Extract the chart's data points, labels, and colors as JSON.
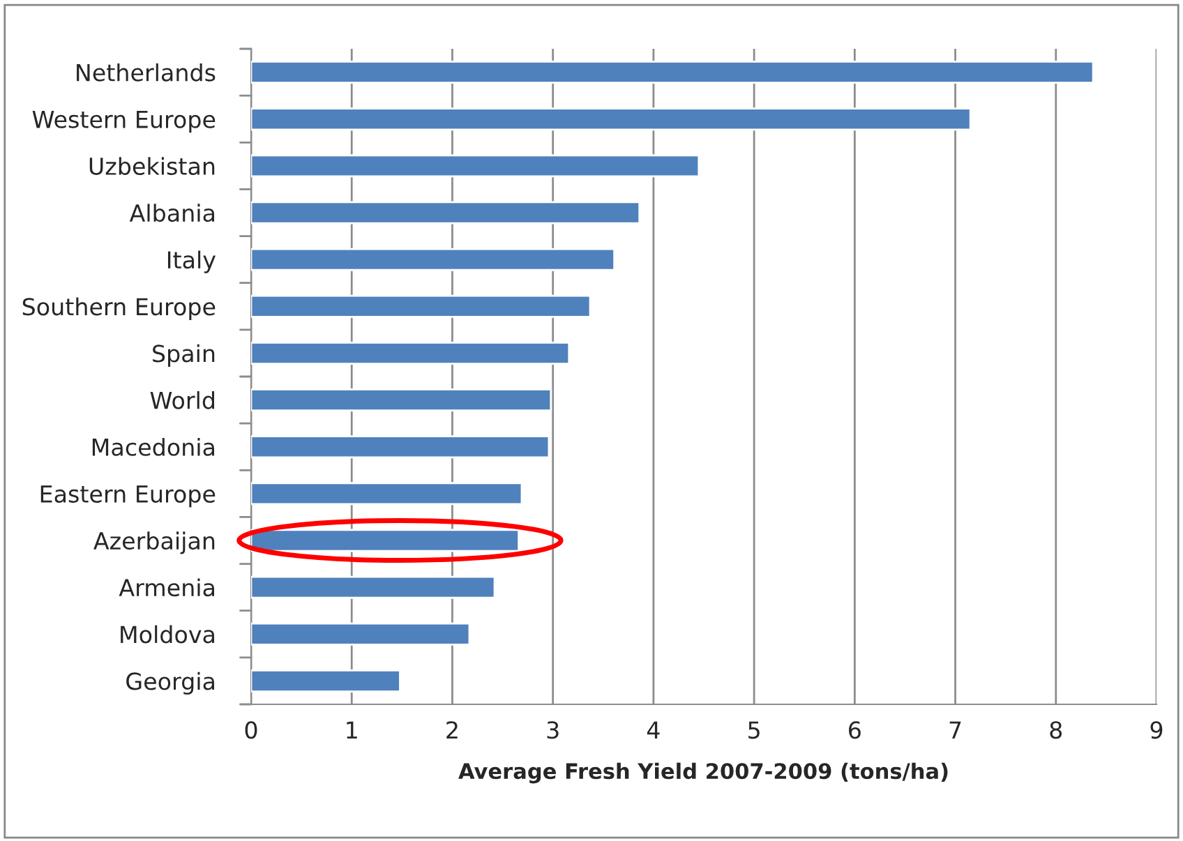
{
  "chart_data": {
    "type": "bar",
    "orientation": "horizontal",
    "categories": [
      "Netherlands",
      "Western Europe",
      "Uzbekistan",
      "Albania",
      "Italy",
      "Southern Europe",
      "Spain",
      "World",
      "Macedonia",
      "Eastern Europe",
      "Azerbaijan",
      "Armenia",
      "Moldova",
      "Georgia"
    ],
    "values": [
      8.37,
      7.15,
      4.45,
      3.86,
      3.61,
      3.37,
      3.16,
      2.98,
      2.96,
      2.69,
      2.66,
      2.42,
      2.17,
      1.48
    ],
    "color": "#4f81bd",
    "xlabel": "Average Fresh Yield 2007-2009 (tons/ha)",
    "xlim": [
      0,
      9
    ],
    "xticks": [
      0,
      1,
      2,
      3,
      4,
      5,
      6,
      7,
      8,
      9
    ],
    "grid": "x",
    "legend": false
  }
}
